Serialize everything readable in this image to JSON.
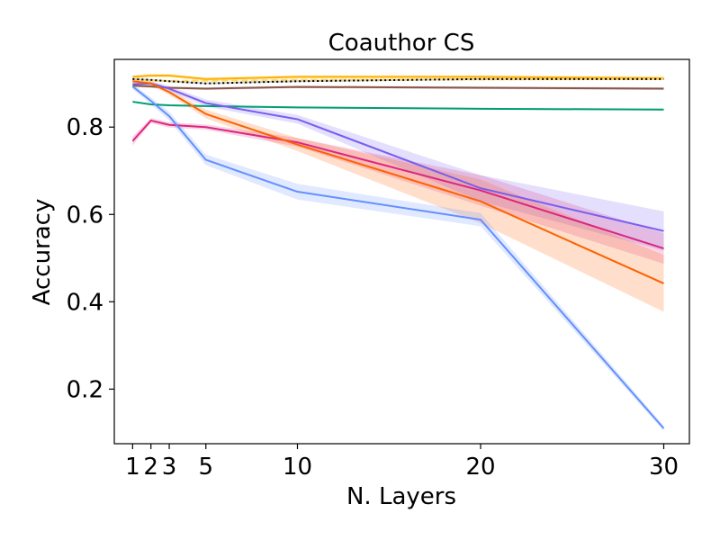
{
  "chart_data": {
    "type": "line",
    "title": "Coauthor CS",
    "xlabel": "N. Layers",
    "ylabel": "Accuracy",
    "x": [
      1,
      2,
      3,
      5,
      10,
      20,
      30
    ],
    "x_ticks": [
      1,
      2,
      3,
      5,
      10,
      20,
      30
    ],
    "y_ticks": [
      0.2,
      0.4,
      0.6,
      0.8
    ],
    "xlim": [
      0.0,
      31.4
    ],
    "ylim": [
      0.075,
      0.955
    ],
    "grid": false,
    "series": [
      {
        "color": "#ffb000",
        "style": "solid",
        "values": [
          0.915,
          0.918,
          0.918,
          0.91,
          0.915,
          0.915,
          0.912
        ],
        "band": [
          0.004,
          0.004,
          0.004,
          0.004,
          0.004,
          0.004,
          0.004
        ]
      },
      {
        "color": "#ffd966",
        "style": "dashed",
        "values": [
          0.906,
          0.906,
          0.906,
          0.906,
          0.908,
          0.909,
          0.91
        ],
        "band": [
          0.002,
          0.002,
          0.002,
          0.002,
          0.002,
          0.002,
          0.002
        ]
      },
      {
        "color": "#000000",
        "style": "dotted",
        "values": [
          0.91,
          0.908,
          0.905,
          0.9,
          0.905,
          0.91,
          0.91
        ],
        "band": [
          0.002,
          0.002,
          0.002,
          0.002,
          0.002,
          0.002,
          0.002
        ]
      },
      {
        "color": "#8c564b",
        "style": "solid",
        "values": [
          0.895,
          0.893,
          0.89,
          0.888,
          0.892,
          0.89,
          0.888
        ],
        "band": [
          0.003,
          0.003,
          0.003,
          0.003,
          0.003,
          0.003,
          0.003
        ]
      },
      {
        "color": "#009e73",
        "style": "solid",
        "values": [
          0.858,
          0.852,
          0.85,
          0.848,
          0.845,
          0.842,
          0.84
        ],
        "band": [
          0.002,
          0.002,
          0.002,
          0.002,
          0.002,
          0.002,
          0.002
        ]
      },
      {
        "color": "#785ef0",
        "style": "solid",
        "values": [
          0.898,
          0.9,
          0.888,
          0.855,
          0.818,
          0.66,
          0.562
        ],
        "band": [
          0.005,
          0.005,
          0.006,
          0.008,
          0.01,
          0.03,
          0.045
        ]
      },
      {
        "color": "#dc267f",
        "style": "solid",
        "values": [
          0.768,
          0.815,
          0.805,
          0.8,
          0.765,
          0.655,
          0.522
        ],
        "band": [
          0.01,
          0.006,
          0.006,
          0.006,
          0.01,
          0.035,
          0.035
        ]
      },
      {
        "color": "#fe6100",
        "style": "solid",
        "values": [
          0.905,
          0.9,
          0.88,
          0.83,
          0.76,
          0.63,
          0.442
        ],
        "band": [
          0.005,
          0.005,
          0.006,
          0.01,
          0.015,
          0.05,
          0.065
        ]
      },
      {
        "color": "#648fff",
        "style": "solid",
        "values": [
          0.893,
          0.86,
          0.825,
          0.725,
          0.652,
          0.588,
          0.11
        ],
        "band": [
          0.006,
          0.008,
          0.01,
          0.012,
          0.018,
          0.015,
          0.006
        ]
      }
    ]
  }
}
